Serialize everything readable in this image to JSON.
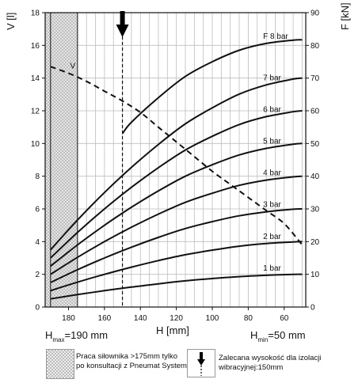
{
  "chart_data": {
    "type": "line",
    "y_left_label": "V [l]",
    "y_right_label": "F [kN]",
    "x_label": "H [mm]",
    "x_ticks": [
      180,
      160,
      140,
      120,
      100,
      80,
      60
    ],
    "y_left_ticks": [
      0,
      2,
      4,
      6,
      8,
      10,
      12,
      14,
      16,
      18
    ],
    "y_right_ticks": [
      0,
      10,
      20,
      30,
      40,
      50,
      60,
      70,
      80,
      90
    ],
    "x_range": [
      193,
      48
    ],
    "y_left_range": [
      0,
      18
    ],
    "y_right_range": [
      0,
      90
    ],
    "grid": true,
    "h_max_label": {
      "prefix": "H",
      "sub": "max",
      "suffix": "=190 mm"
    },
    "h_min_label": {
      "prefix": "H",
      "sub": "min",
      "suffix": "=50 mm"
    },
    "hatched_region": {
      "from_h": 190,
      "to_h": 175
    },
    "recommended_height": 150,
    "volume_series": {
      "name": "V",
      "axis": "left",
      "x": [
        190,
        180,
        170,
        160,
        150,
        140,
        130,
        120,
        110,
        100,
        90,
        80,
        70,
        60,
        50
      ],
      "y": [
        14.7,
        14.3,
        13.8,
        13.2,
        12.6,
        11.9,
        11.0,
        10.1,
        9.2,
        8.3,
        7.5,
        6.7,
        5.9,
        5.1,
        3.8
      ]
    },
    "series": [
      {
        "name": "1 bar",
        "axis": "right",
        "x": [
          190,
          175,
          160,
          145,
          130,
          115,
          100,
          85,
          70,
          55,
          50
        ],
        "y": [
          2.5,
          3.8,
          5.0,
          6.1,
          7.1,
          8.0,
          8.7,
          9.3,
          9.7,
          10.0,
          10.0
        ]
      },
      {
        "name": "2 bar",
        "axis": "right",
        "x": [
          190,
          175,
          160,
          145,
          130,
          115,
          100,
          85,
          70,
          55,
          50
        ],
        "y": [
          5.0,
          7.6,
          10.0,
          12.2,
          14.2,
          16.0,
          17.4,
          18.6,
          19.4,
          19.9,
          20.0
        ]
      },
      {
        "name": "3 bar",
        "axis": "right",
        "x": [
          190,
          175,
          160,
          145,
          130,
          115,
          100,
          85,
          70,
          55,
          50
        ],
        "y": [
          7.5,
          11.4,
          15.0,
          18.3,
          21.3,
          24.0,
          26.1,
          27.9,
          29.1,
          29.9,
          30.0
        ]
      },
      {
        "name": "4 bar",
        "axis": "right",
        "x": [
          190,
          175,
          160,
          145,
          130,
          115,
          100,
          85,
          70,
          55,
          50
        ],
        "y": [
          10.0,
          15.2,
          20.0,
          24.4,
          28.4,
          32.0,
          34.8,
          37.2,
          38.8,
          39.8,
          40.0
        ]
      },
      {
        "name": "5 bar",
        "axis": "right",
        "x": [
          190,
          175,
          160,
          145,
          130,
          115,
          100,
          85,
          70,
          55,
          50
        ],
        "y": [
          12.5,
          19.0,
          25.0,
          30.5,
          35.5,
          40.0,
          43.5,
          46.5,
          48.5,
          49.8,
          50.0
        ]
      },
      {
        "name": "6 bar",
        "axis": "right",
        "x": [
          190,
          175,
          160,
          145,
          130,
          115,
          100,
          85,
          70,
          55,
          50
        ],
        "y": [
          15.0,
          22.8,
          30.0,
          36.6,
          42.6,
          48.0,
          52.2,
          55.8,
          58.2,
          59.7,
          60.0
        ]
      },
      {
        "name": "7 bar",
        "axis": "right",
        "x": [
          190,
          175,
          160,
          145,
          130,
          115,
          100,
          85,
          70,
          55,
          50
        ],
        "y": [
          17.5,
          26.6,
          35.0,
          42.7,
          49.7,
          56.0,
          60.9,
          65.1,
          67.9,
          69.7,
          70.0
        ]
      },
      {
        "name": "F 8 bar",
        "axis": "right",
        "x": [
          150,
          145,
          130,
          115,
          100,
          85,
          70,
          55,
          50
        ],
        "y": [
          53.0,
          56.5,
          64.0,
          70.5,
          75.0,
          78.5,
          80.6,
          81.6,
          81.7
        ]
      }
    ],
    "legend": [
      {
        "text": "Praca siłownika >175mm tylko po konsultacji z Pneumat System"
      },
      {
        "text": "Zalecana wysokość dla izolacji wibracyjnej:150mm"
      }
    ]
  }
}
